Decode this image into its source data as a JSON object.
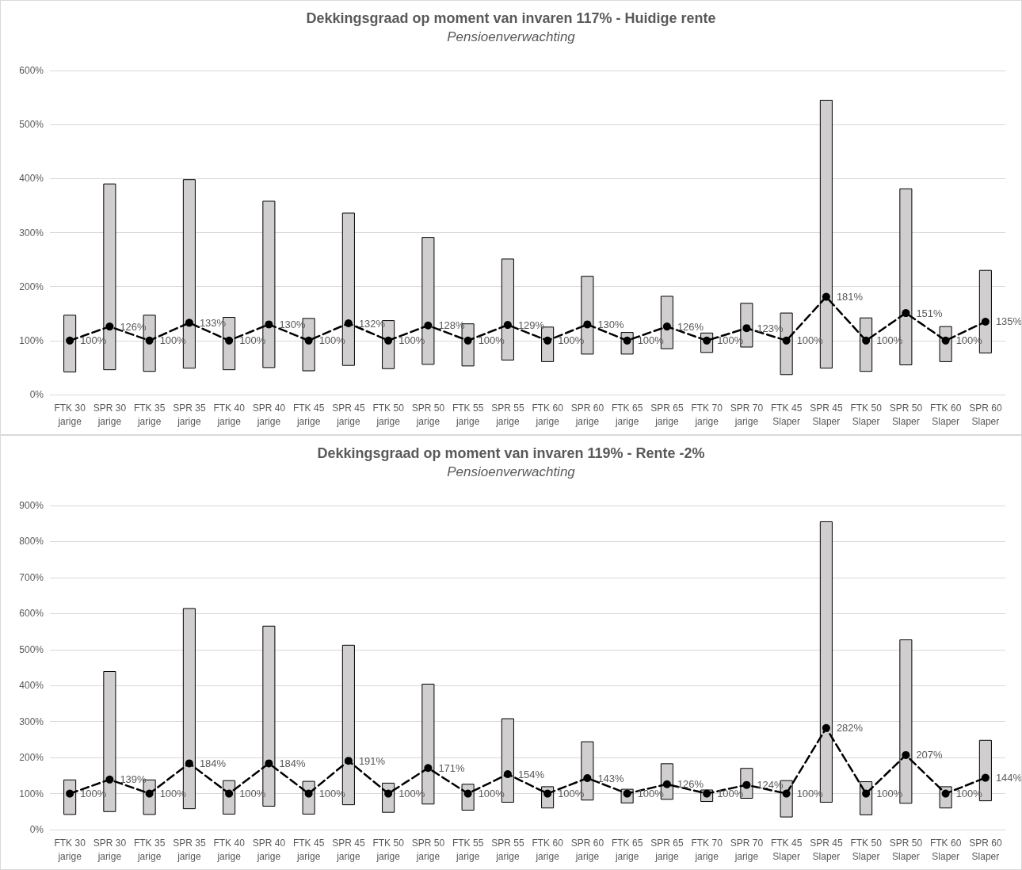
{
  "chart_data": [
    {
      "type": "bar",
      "title": "Dekkingsgraad op moment van invaren 117% - Huidige rente",
      "subtitle": "Pensioenverwachting",
      "categories": [
        "FTK 30 jarige",
        "SPR 30 jarige",
        "FTK 35 jarige",
        "SPR 35 jarige",
        "FTK 40 jarige",
        "SPR 40 jarige",
        "FTK 45 jarige",
        "SPR 45 jarige",
        "FTK 50 jarige",
        "SPR 50 jarige",
        "FTK 55 jarige",
        "SPR 55 jarige",
        "FTK 60 jarige",
        "SPR 60 jarige",
        "FTK 65 jarige",
        "SPR 65 jarige",
        "FTK 70 jarige",
        "SPR 70 jarige",
        "FTK 45 Slaper",
        "SPR 45 Slaper",
        "FTK 50 Slaper",
        "SPR 50 Slaper",
        "FTK 60 Slaper",
        "SPR 60 Slaper"
      ],
      "series": [
        {
          "color": "#d0cece",
          "base": [
            42,
            46,
            43,
            49,
            46,
            50,
            44,
            54,
            48,
            56,
            53,
            64,
            61,
            75,
            75,
            85,
            78,
            88,
            37,
            49,
            43,
            55,
            61,
            77
          ],
          "values": [
            105,
            344,
            104,
            349,
            97,
            308,
            97,
            282,
            89,
            235,
            78,
            187,
            64,
            144,
            40,
            97,
            36,
            81,
            114,
            496,
            99,
            326,
            65,
            153
          ]
        },
        {
          "type": "line",
          "color": "#000000",
          "marker": "circle",
          "line_style": "dashed",
          "values": [
            100,
            126,
            100,
            133,
            100,
            130,
            100,
            132,
            100,
            128,
            100,
            129,
            100,
            130,
            100,
            126,
            100,
            123,
            100,
            181,
            100,
            151,
            100,
            135
          ],
          "value_labels": [
            "100%",
            "126%",
            "100%",
            "133%",
            "100%",
            "130%",
            "100%",
            "132%",
            "100%",
            "128%",
            "100%",
            "129%",
            "100%",
            "130%",
            "100%",
            "126%",
            "100%",
            "123%",
            "100%",
            "181%",
            "100%",
            "151%",
            "100%",
            "135%"
          ]
        }
      ],
      "ylim": [
        0,
        600
      ],
      "yticks": [
        {
          "value": 0,
          "label": "0%"
        },
        {
          "value": 100,
          "label": "100%"
        },
        {
          "value": 200,
          "label": "200%"
        },
        {
          "value": 300,
          "label": "300%"
        },
        {
          "value": 400,
          "label": "400%"
        },
        {
          "value": 500,
          "label": "500%"
        },
        {
          "value": 600,
          "label": "600%"
        }
      ],
      "grid": "y"
    },
    {
      "type": "bar",
      "title": "Dekkingsgraad op moment van invaren 119% - Rente -2%",
      "subtitle": "Pensioenverwachting",
      "categories": [
        "FTK 30 jarige",
        "SPR 30 jarige",
        "FTK 35 jarige",
        "SPR 35 jarige",
        "FTK 40 jarige",
        "SPR 40 jarige",
        "FTK 45 jarige",
        "SPR 45 jarige",
        "FTK 50 jarige",
        "SPR 50 jarige",
        "FTK 55 jarige",
        "SPR 55 jarige",
        "FTK 60 jarige",
        "SPR 60 jarige",
        "FTK 65 jarige",
        "SPR 65 jarige",
        "FTK 70 jarige",
        "SPR 70 jarige",
        "FTK 45 Slaper",
        "SPR 45 Slaper",
        "FTK 50 Slaper",
        "SPR 50 Slaper",
        "FTK 60 Slaper",
        "SPR 60 Slaper"
      ],
      "series": [
        {
          "color": "#d0cece",
          "base": [
            42,
            50,
            42,
            58,
            43,
            65,
            43,
            69,
            48,
            71,
            54,
            76,
            60,
            82,
            74,
            84,
            78,
            87,
            35,
            76,
            41,
            73,
            60,
            80
          ],
          "values": [
            96,
            389,
            96,
            556,
            93,
            500,
            91,
            443,
            81,
            333,
            72,
            232,
            59,
            162,
            38,
            99,
            32,
            83,
            101,
            779,
            92,
            454,
            59,
            168
          ]
        },
        {
          "type": "line",
          "color": "#000000",
          "marker": "circle",
          "line_style": "dashed",
          "values": [
            100,
            139,
            100,
            184,
            100,
            184,
            100,
            191,
            100,
            171,
            100,
            154,
            100,
            143,
            100,
            126,
            100,
            124,
            100,
            282,
            100,
            207,
            100,
            144
          ],
          "value_labels": [
            "100%",
            "139%",
            "100%",
            "184%",
            "100%",
            "184%",
            "100%",
            "191%",
            "100%",
            "171%",
            "100%",
            "154%",
            "100%",
            "143%",
            "100%",
            "126%",
            "100%",
            "124%",
            "100%",
            "282%",
            "100%",
            "207%",
            "100%",
            "144%"
          ]
        }
      ],
      "ylim": [
        0,
        900
      ],
      "yticks": [
        {
          "value": 0,
          "label": "0%"
        },
        {
          "value": 100,
          "label": "100%"
        },
        {
          "value": 200,
          "label": "200%"
        },
        {
          "value": 300,
          "label": "300%"
        },
        {
          "value": 400,
          "label": "400%"
        },
        {
          "value": 500,
          "label": "500%"
        },
        {
          "value": 600,
          "label": "600%"
        },
        {
          "value": 700,
          "label": "700%"
        },
        {
          "value": 800,
          "label": "800%"
        },
        {
          "value": 900,
          "label": "900%"
        }
      ],
      "grid": "y"
    }
  ]
}
